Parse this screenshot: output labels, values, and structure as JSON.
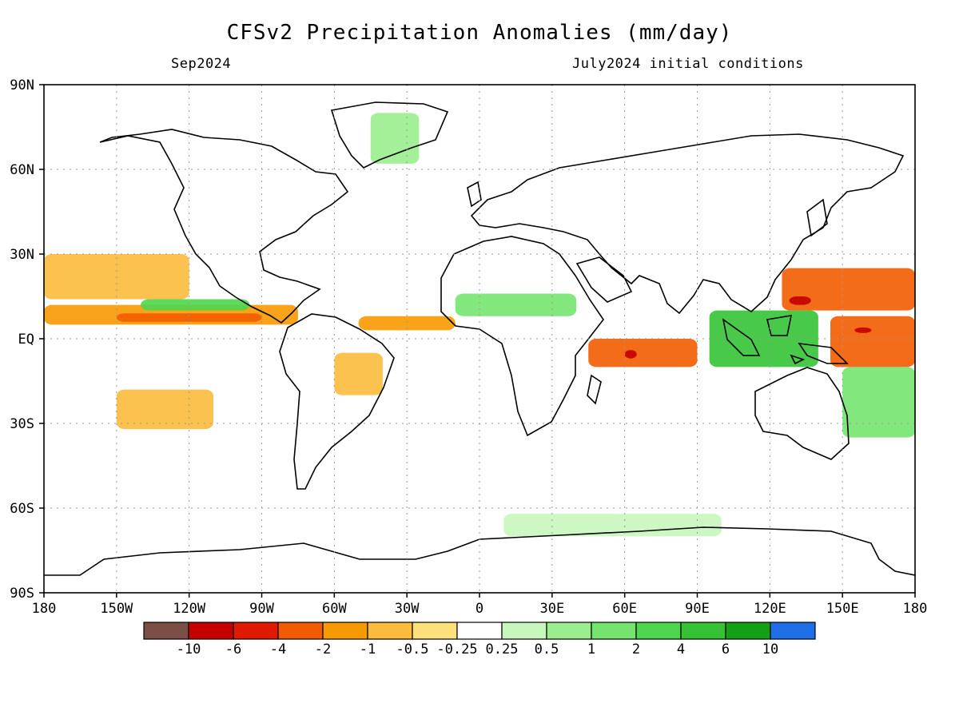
{
  "header": {
    "title": "CFSv2 Precipitation Anomalies (mm/day)",
    "valid_month": "Sep2024",
    "initial_conditions": "July2024 initial conditions"
  },
  "axes": {
    "lat_labels": [
      "90N",
      "60N",
      "30N",
      "EQ",
      "30S",
      "60S",
      "90S"
    ],
    "lat_values": [
      90,
      60,
      30,
      0,
      -30,
      -60,
      -90
    ],
    "lon_labels": [
      "180",
      "150W",
      "120W",
      "90W",
      "60W",
      "30W",
      "0",
      "30E",
      "60E",
      "90E",
      "120E",
      "150E",
      "180"
    ],
    "lon_values": [
      -180,
      -150,
      -120,
      -90,
      -60,
      -30,
      0,
      30,
      60,
      90,
      120,
      150,
      180
    ],
    "grid": "dotted every 30 degrees"
  },
  "colorbar": {
    "colors": [
      "#7b4f45",
      "#c40000",
      "#e01a00",
      "#f25c00",
      "#f79900",
      "#fbbb3c",
      "#fbe07c",
      "#ffffff",
      "#c8f7bd",
      "#9aee8d",
      "#74e46e",
      "#4ed64e",
      "#35c335",
      "#14a014",
      "#1e6ee8"
    ],
    "labels": [
      "-10",
      "-6",
      "-4",
      "-2",
      "-1",
      "-0.5",
      "-0.25",
      "0.25",
      "0.5",
      "1",
      "2",
      "4",
      "6",
      "10"
    ]
  },
  "anomaly_regions": [
    {
      "name": "E Pacific ITCZ dry band",
      "color": "#f79900",
      "lon": [
        -180,
        -75
      ],
      "lat": [
        5,
        12
      ]
    },
    {
      "name": "E Pacific ITCZ core",
      "color": "#f25c00",
      "lon": [
        -150,
        -90
      ],
      "lat": [
        6,
        9
      ]
    },
    {
      "name": "E Pacific moist band",
      "color": "#4ed64e",
      "lon": [
        -140,
        -95
      ],
      "lat": [
        10,
        14
      ]
    },
    {
      "name": "N Pacific subtropical dry",
      "color": "#fbbb3c",
      "lon": [
        -180,
        -120
      ],
      "lat": [
        14,
        30
      ]
    },
    {
      "name": "Atlantic ITCZ dry",
      "color": "#f79900",
      "lon": [
        -50,
        -10
      ],
      "lat": [
        3,
        8
      ]
    },
    {
      "name": "Sahel wet",
      "color": "#74e46e",
      "lon": [
        -10,
        40
      ],
      "lat": [
        8,
        16
      ]
    },
    {
      "name": "Indian Ocean dry",
      "color": "#f25c00",
      "lon": [
        45,
        90
      ],
      "lat": [
        -10,
        0
      ]
    },
    {
      "name": "Indian Ocean dry core",
      "color": "#c40000",
      "lon": [
        60,
        65
      ],
      "lat": [
        -7,
        -4
      ]
    },
    {
      "name": "Maritime Continent wet",
      "color": "#35c335",
      "lon": [
        95,
        140
      ],
      "lat": [
        -10,
        10
      ]
    },
    {
      "name": "W Pacific dry north",
      "color": "#f25c00",
      "lon": [
        125,
        180
      ],
      "lat": [
        10,
        25
      ]
    },
    {
      "name": "W Pacific dry core north",
      "color": "#c40000",
      "lon": [
        128,
        137
      ],
      "lat": [
        12,
        15
      ]
    },
    {
      "name": "W Pacific dry equatorial",
      "color": "#f25c00",
      "lon": [
        145,
        180
      ],
      "lat": [
        -10,
        8
      ]
    },
    {
      "name": "W Pacific dry core equatorial",
      "color": "#c40000",
      "lon": [
        155,
        162
      ],
      "lat": [
        2,
        4
      ]
    },
    {
      "name": "South Pacific wet",
      "color": "#74e46e",
      "lon": [
        150,
        180
      ],
      "lat": [
        -35,
        -10
      ]
    },
    {
      "name": "S Pacific dry",
      "color": "#fbbb3c",
      "lon": [
        -150,
        -110
      ],
      "lat": [
        -32,
        -18
      ]
    },
    {
      "name": "S America dry",
      "color": "#fbbb3c",
      "lon": [
        -60,
        -40
      ],
      "lat": [
        -20,
        -5
      ]
    },
    {
      "name": "Southern Ocean wet",
      "color": "#c8f7bd",
      "lon": [
        10,
        100
      ],
      "lat": [
        -70,
        -62
      ]
    },
    {
      "name": "Greenland wet",
      "color": "#9aee8d",
      "lon": [
        -45,
        -25
      ],
      "lat": [
        62,
        80
      ]
    }
  ]
}
